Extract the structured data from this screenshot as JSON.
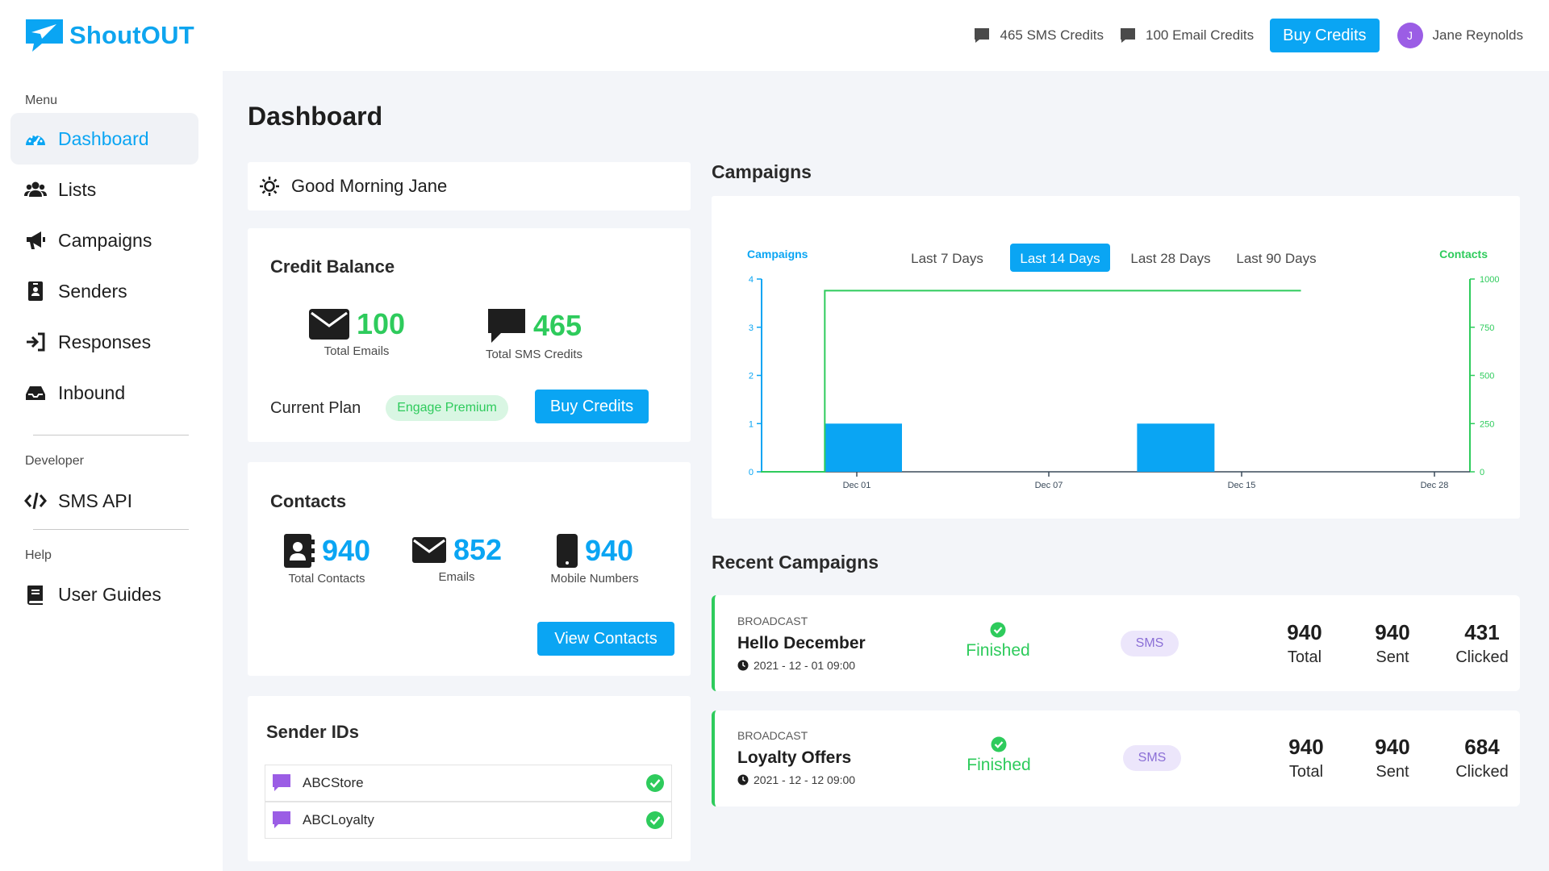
{
  "app": {
    "brand": "ShoutOUT"
  },
  "header": {
    "sms_credits": "465 SMS Credits",
    "email_credits": "100 Email Credits",
    "buy_credits": "Buy Credits",
    "user_initial": "J",
    "user_name": "Jane Reynolds"
  },
  "sidebar": {
    "menu_label": "Menu",
    "items": [
      {
        "label": "Dashboard",
        "icon": "dashboard-icon",
        "active": true
      },
      {
        "label": "Lists",
        "icon": "users-icon"
      },
      {
        "label": "Campaigns",
        "icon": "megaphone-icon"
      },
      {
        "label": "Senders",
        "icon": "id-badge-icon"
      },
      {
        "label": "Responses",
        "icon": "sign-in-icon"
      },
      {
        "label": "Inbound",
        "icon": "inbox-icon"
      }
    ],
    "developer_label": "Developer",
    "developer_items": [
      {
        "label": "SMS API",
        "icon": "code-icon"
      }
    ],
    "help_label": "Help",
    "help_items": [
      {
        "label": "User Guides",
        "icon": "book-icon"
      }
    ]
  },
  "page": {
    "title": "Dashboard",
    "greeting": "Good Morning Jane"
  },
  "credit_balance": {
    "title": "Credit Balance",
    "emails_value": "100",
    "emails_label": "Total Emails",
    "sms_value": "465",
    "sms_label": "Total SMS Credits",
    "plan_label": "Current Plan",
    "plan_value": "Engage Premium",
    "buy_label": "Buy Credits"
  },
  "contacts": {
    "title": "Contacts",
    "total_value": "940",
    "total_label": "Total Contacts",
    "emails_value": "852",
    "emails_label": "Emails",
    "mobile_value": "940",
    "mobile_label": "Mobile Numbers",
    "view_label": "View Contacts"
  },
  "sender_ids": {
    "title": "Sender IDs",
    "items": [
      {
        "name": "ABCStore"
      },
      {
        "name": "ABCLoyalty"
      }
    ]
  },
  "campaigns_section": {
    "title": "Campaigns",
    "range_tabs": [
      "Last 7 Days",
      "Last 14 Days",
      "Last 28 Days",
      "Last 90 Days"
    ],
    "active_range": "Last 14 Days"
  },
  "chart_data": {
    "type": "bar",
    "x_ticks": [
      "Dec 01",
      "Dec 07",
      "Dec 15",
      "Dec 28"
    ],
    "left_axis": {
      "label": "Campaigns",
      "ylim": [
        0,
        4
      ],
      "ticks": [
        0,
        1,
        2,
        3,
        4
      ]
    },
    "right_axis": {
      "label": "Contacts",
      "ylim": [
        0,
        1000
      ],
      "ticks": [
        0,
        250,
        500,
        750,
        1000
      ]
    },
    "series": [
      {
        "name": "Campaigns",
        "type": "bar",
        "axis": "left",
        "color": "#0aa5f3",
        "points": [
          {
            "x": "2021-12-01",
            "y": 1
          },
          {
            "x": "2021-12-12",
            "y": 1
          }
        ]
      },
      {
        "name": "Contacts",
        "type": "line",
        "axis": "right",
        "color": "#2ecb5c",
        "points": [
          {
            "x": "2021-11-28",
            "y": 0
          },
          {
            "x": "2021-11-30",
            "y": 0
          },
          {
            "x": "2021-11-30",
            "y": 940
          },
          {
            "x": "2021-12-19",
            "y": 940
          }
        ]
      }
    ],
    "grid": false,
    "legend": "none"
  },
  "recent": {
    "title": "Recent Campaigns",
    "total_label": "Total",
    "sent_label": "Sent",
    "clicked_label": "Clicked",
    "items": [
      {
        "type": "BROADCAST",
        "name": "Hello December",
        "date": "2021 - 12 - 01 09:00",
        "status": "Finished",
        "channel": "SMS",
        "total": "940",
        "sent": "940",
        "clicked": "431"
      },
      {
        "type": "BROADCAST",
        "name": "Loyalty Offers",
        "date": "2021 - 12 - 12 09:00",
        "status": "Finished",
        "channel": "SMS",
        "total": "940",
        "sent": "940",
        "clicked": "684"
      }
    ]
  },
  "colors": {
    "accent": "#0aa5f3",
    "success": "#2ecb5c",
    "avatar": "#9b5de5",
    "sender_icon": "#9b5de5"
  }
}
